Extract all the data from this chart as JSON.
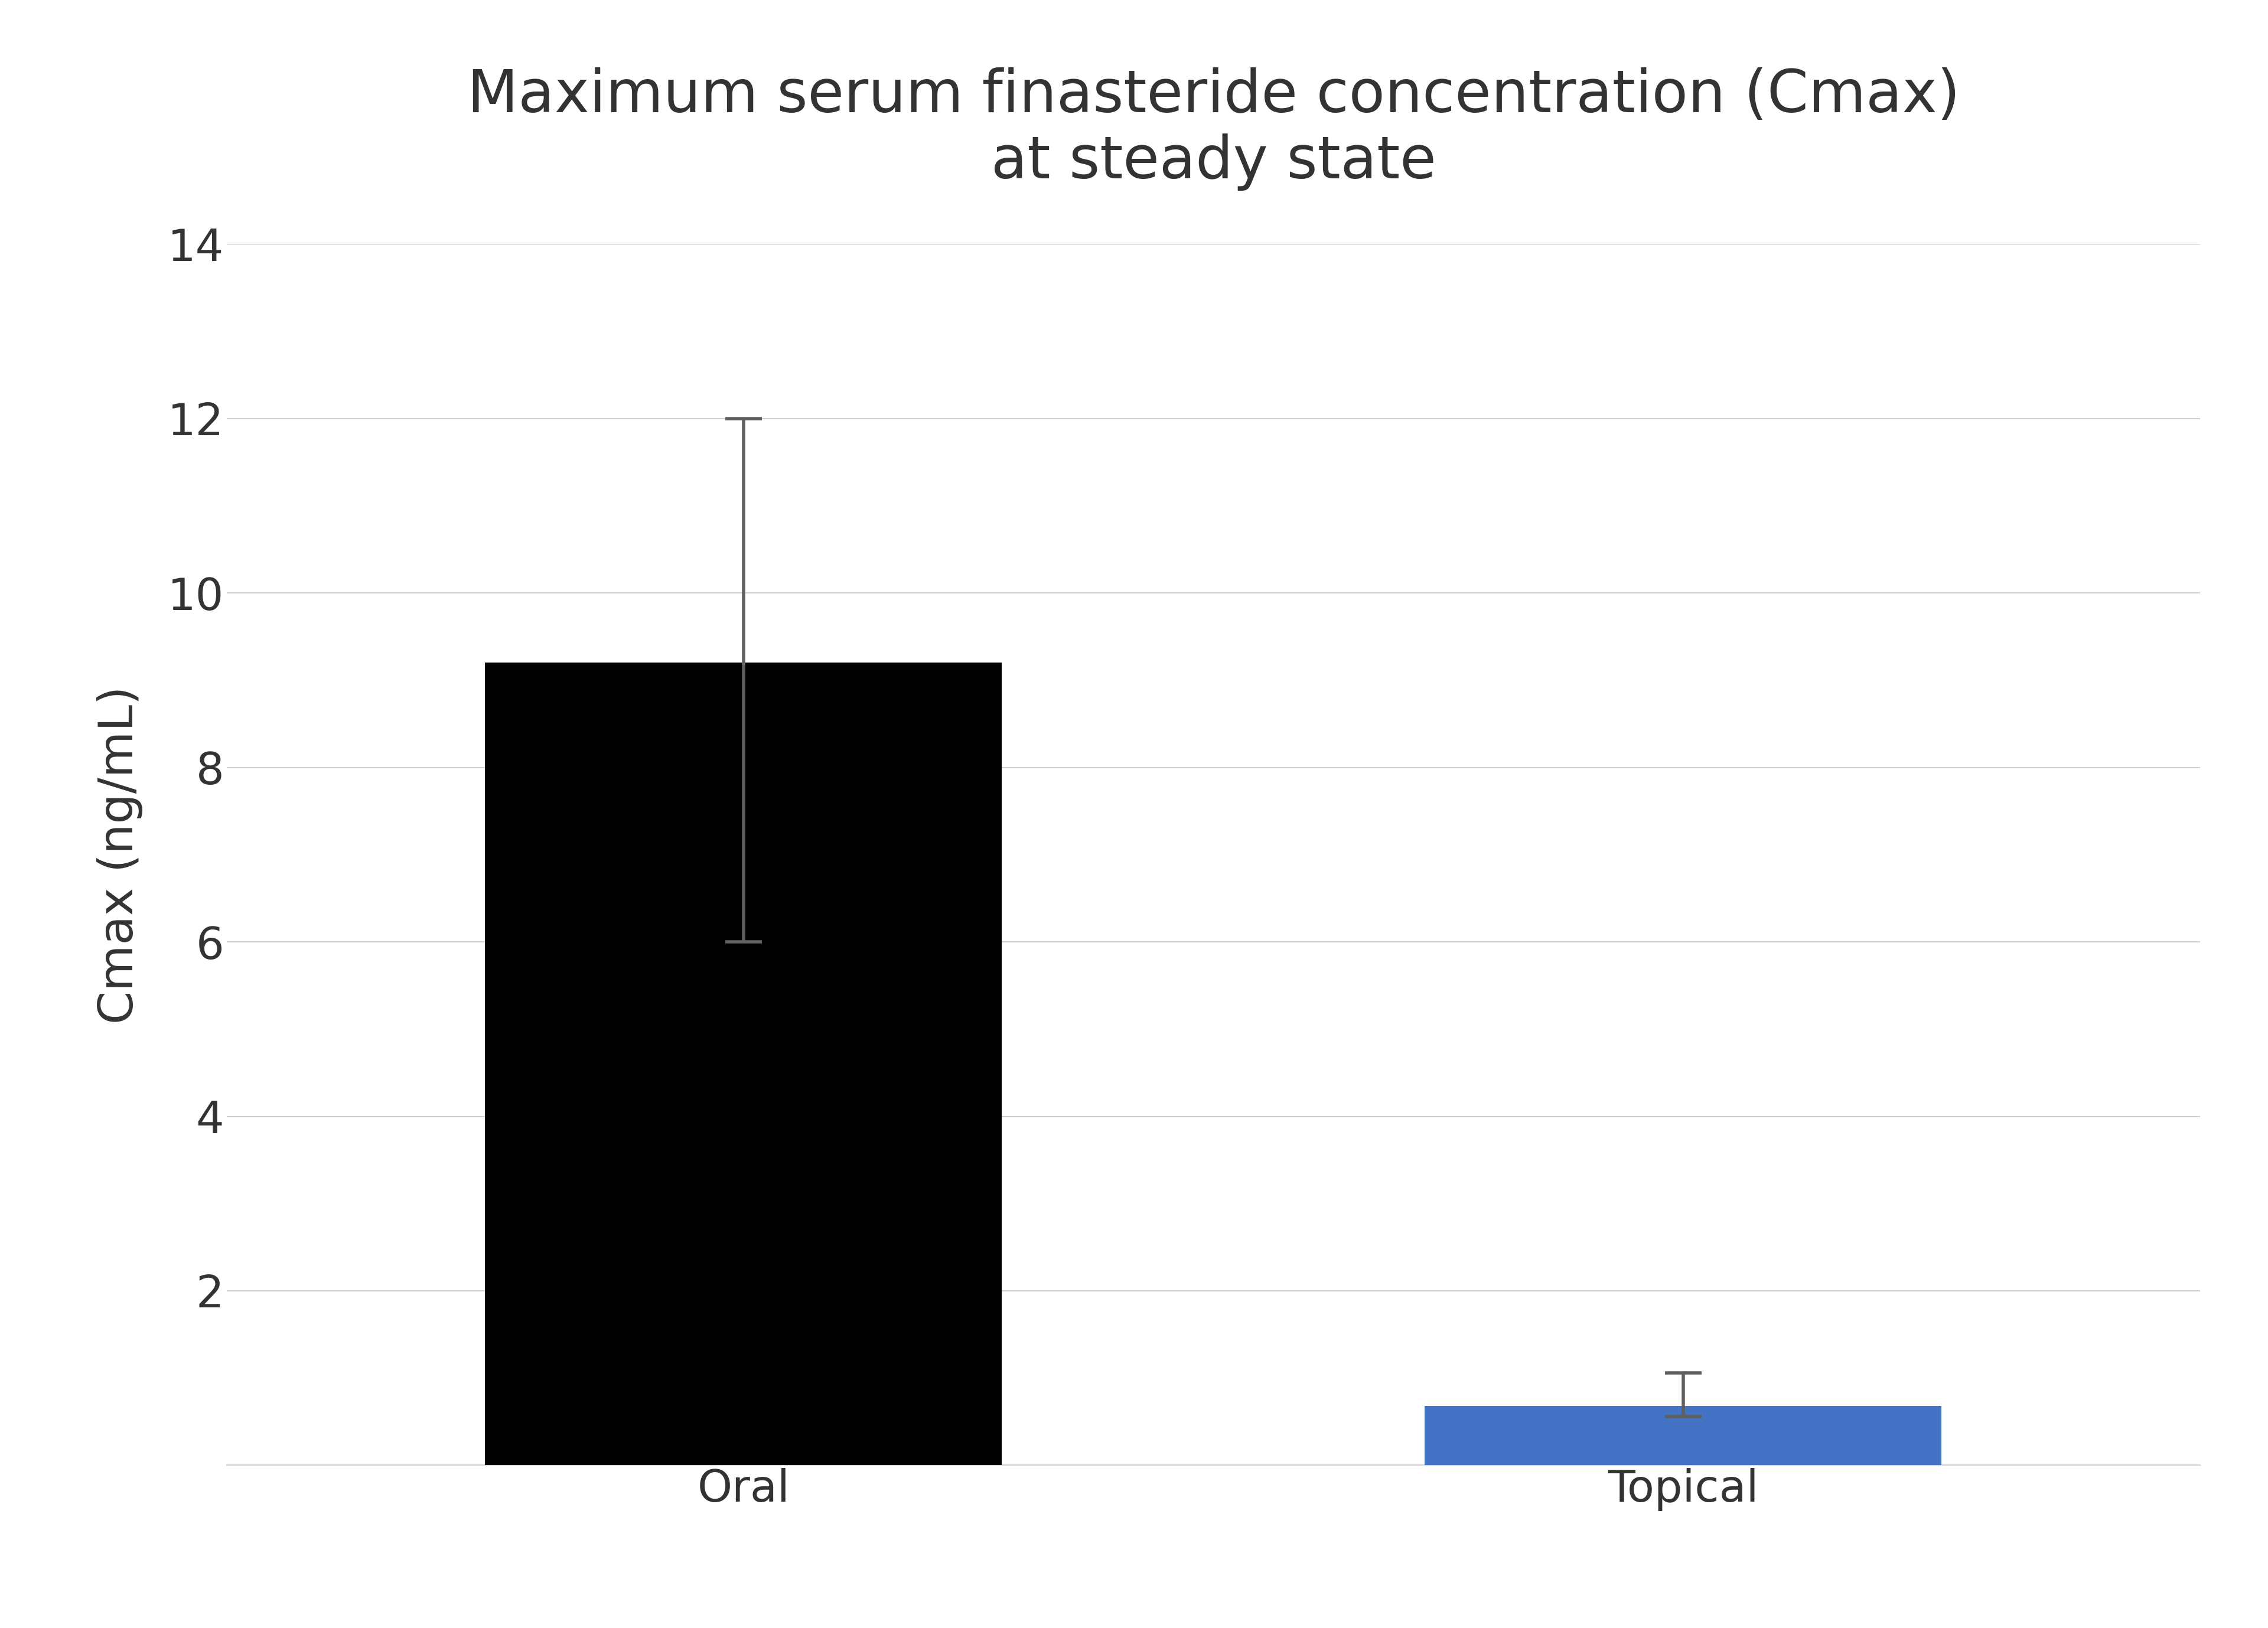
{
  "title": "Maximum serum finasteride concentration (Cmax)\nat steady state",
  "ylabel": "Cmax (ng/mL)",
  "categories": [
    "Oral",
    "Topical"
  ],
  "values": [
    9.2,
    0.68
  ],
  "errors_upper": [
    2.8,
    0.38
  ],
  "errors_lower": [
    3.2,
    0.12
  ],
  "bar_colors": [
    "#000000",
    "#4472C4"
  ],
  "ylim": [
    0,
    14
  ],
  "yticks": [
    0,
    2,
    4,
    6,
    8,
    10,
    12,
    14
  ],
  "title_fontsize": 72,
  "axis_label_fontsize": 58,
  "tick_fontsize": 54,
  "bar_width": 0.55,
  "background_color": "#ffffff",
  "grid_color": "#d0d0d0",
  "error_color": "#606060",
  "text_color": "#333333"
}
